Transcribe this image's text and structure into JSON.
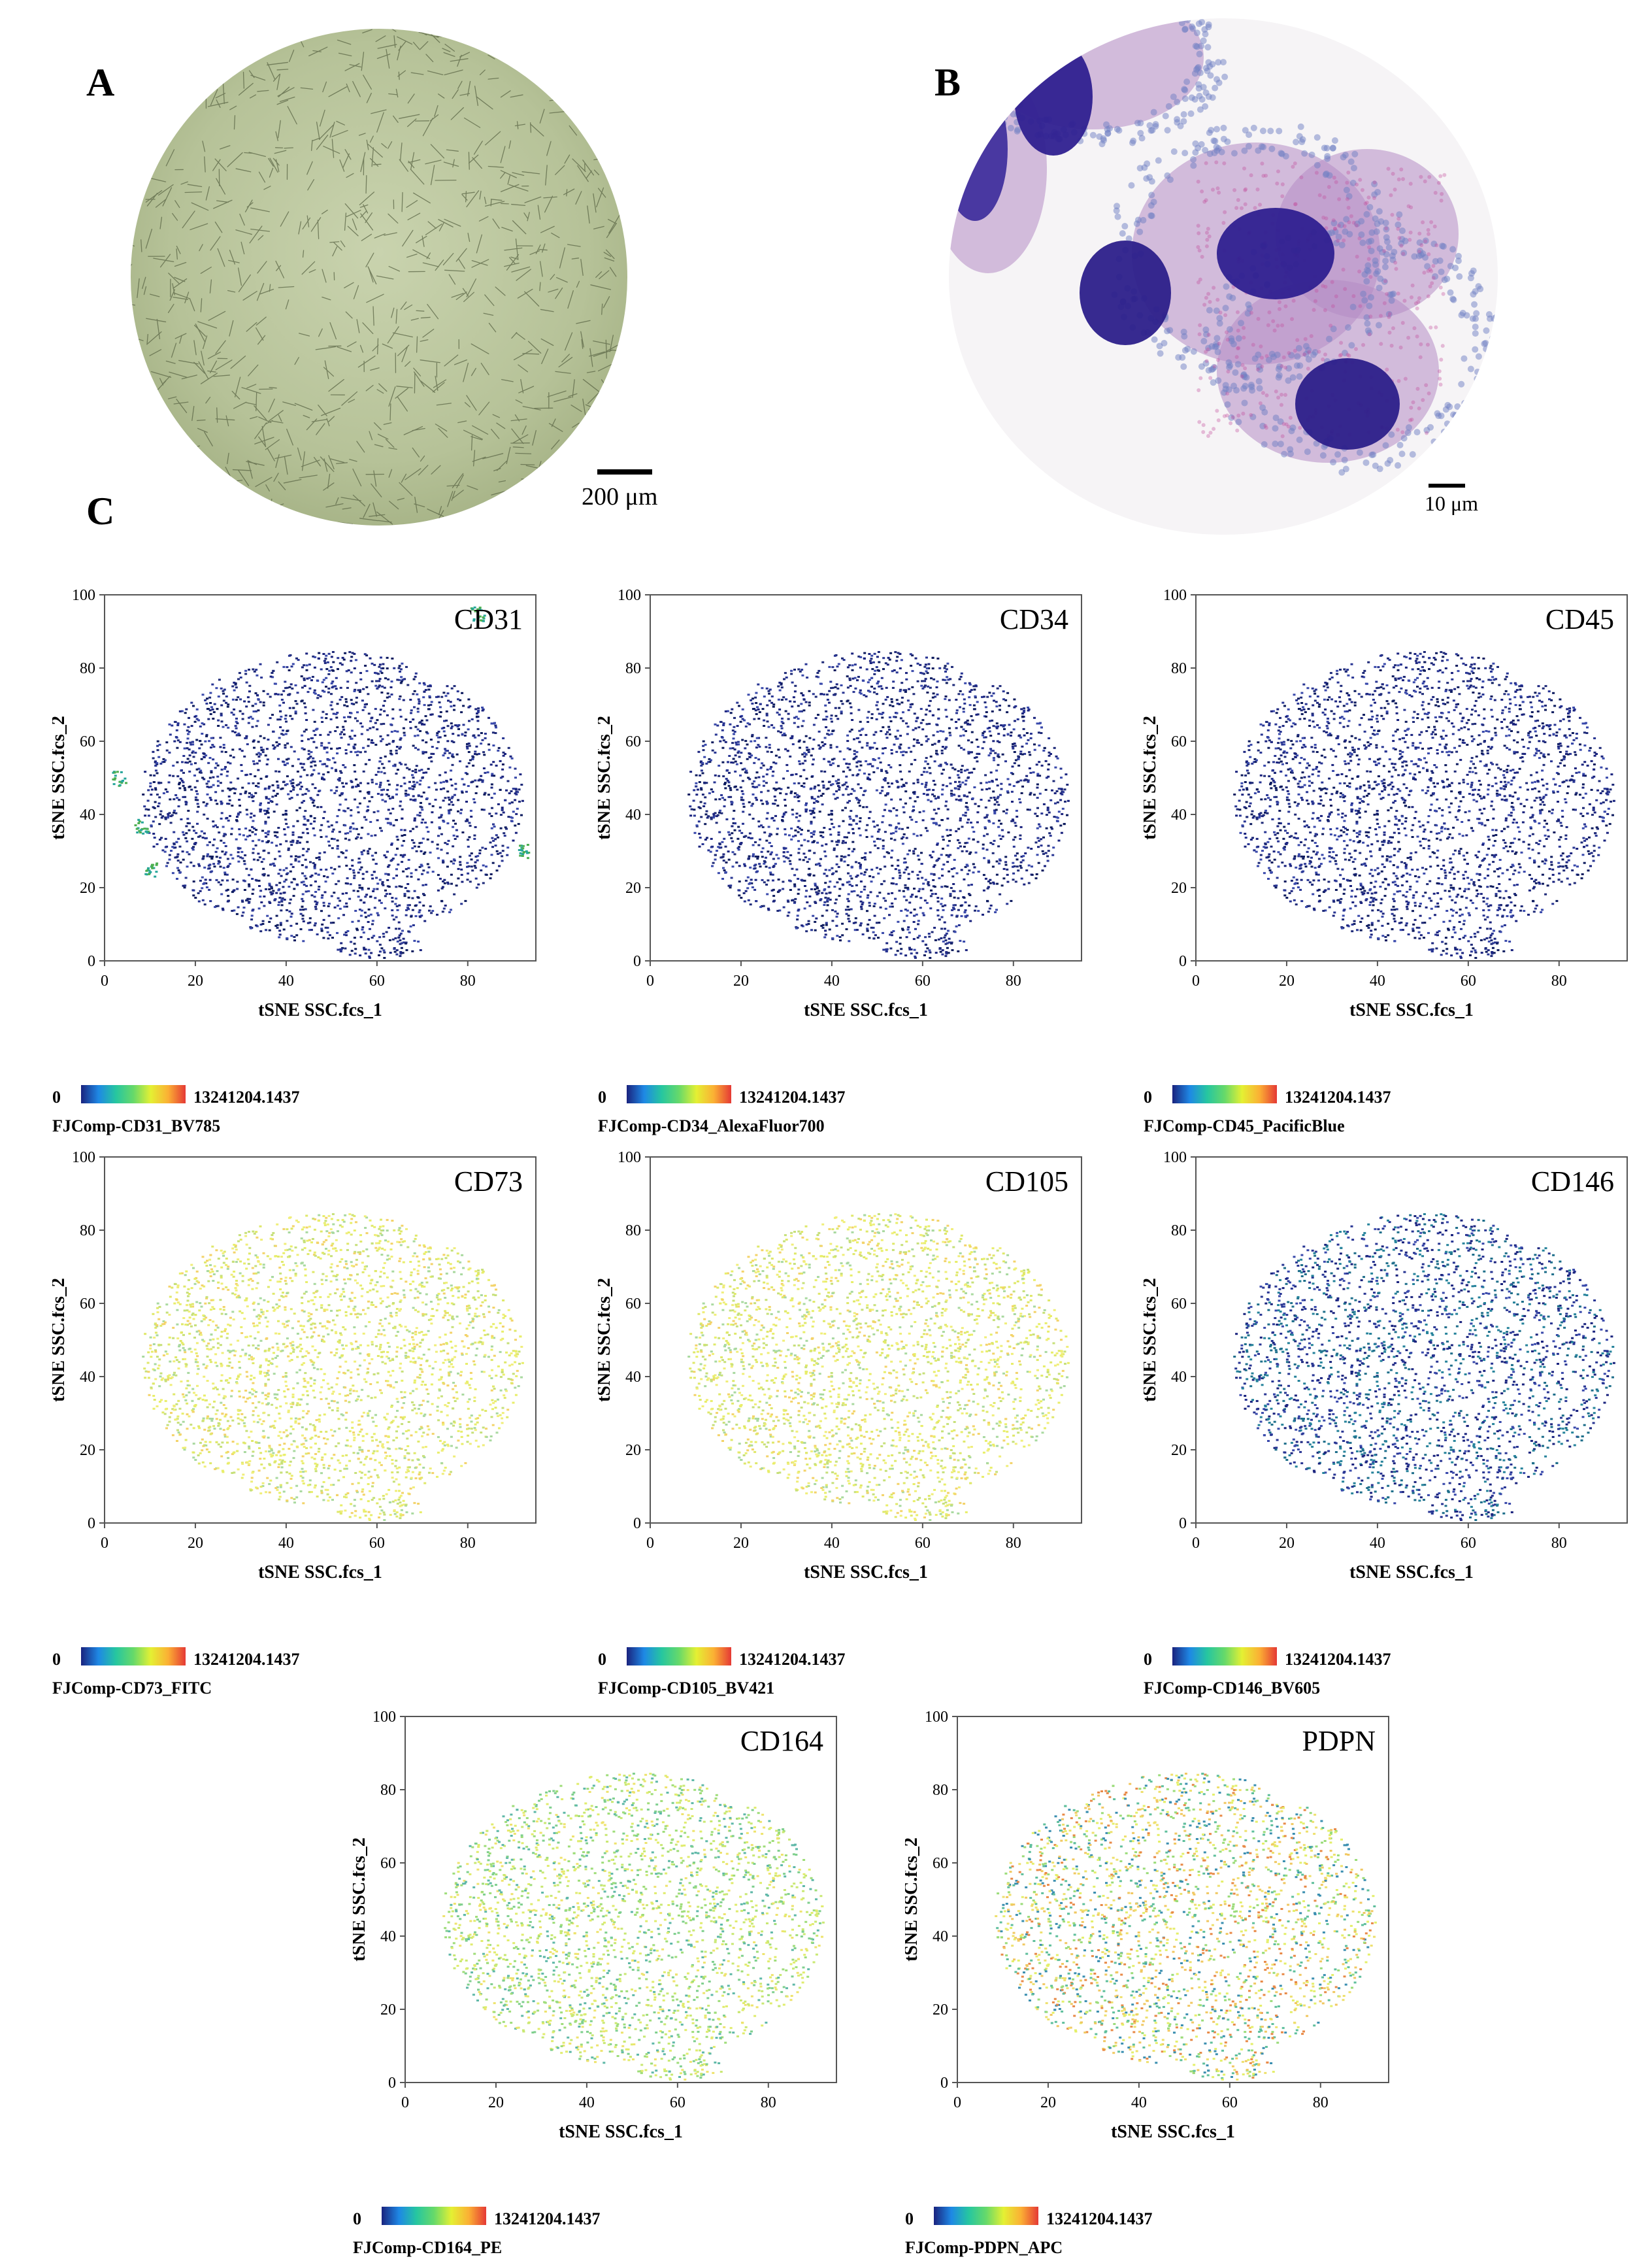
{
  "panels": {
    "a_label": "A",
    "b_label": "B",
    "c_label": "C",
    "a_scale": "200 μm",
    "b_scale": "10 μm"
  },
  "plots": [
    {
      "marker": "CD31",
      "channel": "FJComp-CD31_BV785",
      "profile": "low-hotspots"
    },
    {
      "marker": "CD34",
      "channel": "FJComp-CD34_AlexaFluor700",
      "profile": "low"
    },
    {
      "marker": "CD45",
      "channel": "FJComp-CD45_PacificBlue",
      "profile": "low"
    },
    {
      "marker": "CD73",
      "channel": "FJComp-CD73_FITC",
      "profile": "high"
    },
    {
      "marker": "CD105",
      "channel": "FJComp-CD105_BV421",
      "profile": "high"
    },
    {
      "marker": "CD146",
      "channel": "FJComp-CD146_BV605",
      "profile": "low-teal"
    },
    {
      "marker": "CD164",
      "channel": "FJComp-CD164_PE",
      "profile": "mid"
    },
    {
      "marker": "PDPN",
      "channel": "FJComp-PDPN_APC",
      "profile": "mixed"
    }
  ],
  "axes": {
    "xlabel": "tSNE SSC.fcs_1",
    "ylabel": "tSNE SSC.fcs_2",
    "xticks": [
      "0",
      "20",
      "40",
      "60",
      "80"
    ],
    "yticks": [
      "0",
      "20",
      "40",
      "60",
      "80",
      "100"
    ],
    "xlim": [
      0,
      95
    ],
    "ylim": [
      0,
      100
    ]
  },
  "legend": {
    "min": "0",
    "max": "13241204.1437"
  },
  "chart_data": [
    {
      "type": "scatter",
      "title": "CD31",
      "xlabel": "tSNE SSC.fcs_1",
      "ylabel": "tSNE SSC.fcs_2",
      "xlim": [
        0,
        95
      ],
      "ylim": [
        0,
        100
      ],
      "color_scale": [
        0,
        13241204.1437
      ],
      "intensity": "low"
    },
    {
      "type": "scatter",
      "title": "CD34",
      "xlabel": "tSNE SSC.fcs_1",
      "ylabel": "tSNE SSC.fcs_2",
      "xlim": [
        0,
        95
      ],
      "ylim": [
        0,
        100
      ],
      "color_scale": [
        0,
        13241204.1437
      ],
      "intensity": "low"
    },
    {
      "type": "scatter",
      "title": "CD45",
      "xlabel": "tSNE SSC.fcs_1",
      "ylabel": "tSNE SSC.fcs_2",
      "xlim": [
        0,
        95
      ],
      "ylim": [
        0,
        100
      ],
      "color_scale": [
        0,
        13241204.1437
      ],
      "intensity": "low"
    },
    {
      "type": "scatter",
      "title": "CD73",
      "xlabel": "tSNE SSC.fcs_1",
      "ylabel": "tSNE SSC.fcs_2",
      "xlim": [
        0,
        95
      ],
      "ylim": [
        0,
        100
      ],
      "color_scale": [
        0,
        13241204.1437
      ],
      "intensity": "high"
    },
    {
      "type": "scatter",
      "title": "CD105",
      "xlabel": "tSNE SSC.fcs_1",
      "ylabel": "tSNE SSC.fcs_2",
      "xlim": [
        0,
        95
      ],
      "ylim": [
        0,
        100
      ],
      "color_scale": [
        0,
        13241204.1437
      ],
      "intensity": "high"
    },
    {
      "type": "scatter",
      "title": "CD146",
      "xlabel": "tSNE SSC.fcs_1",
      "ylabel": "tSNE SSC.fcs_2",
      "xlim": [
        0,
        95
      ],
      "ylim": [
        0,
        100
      ],
      "color_scale": [
        0,
        13241204.1437
      ],
      "intensity": "low"
    },
    {
      "type": "scatter",
      "title": "CD164",
      "xlabel": "tSNE SSC.fcs_1",
      "ylabel": "tSNE SSC.fcs_2",
      "xlim": [
        0,
        95
      ],
      "ylim": [
        0,
        100
      ],
      "color_scale": [
        0,
        13241204.1437
      ],
      "intensity": "medium"
    },
    {
      "type": "scatter",
      "title": "PDPN",
      "xlabel": "tSNE SSC.fcs_1",
      "ylabel": "tSNE SSC.fcs_2",
      "xlim": [
        0,
        95
      ],
      "ylim": [
        0,
        100
      ],
      "color_scale": [
        0,
        13241204.1437
      ],
      "intensity": "mixed"
    }
  ]
}
